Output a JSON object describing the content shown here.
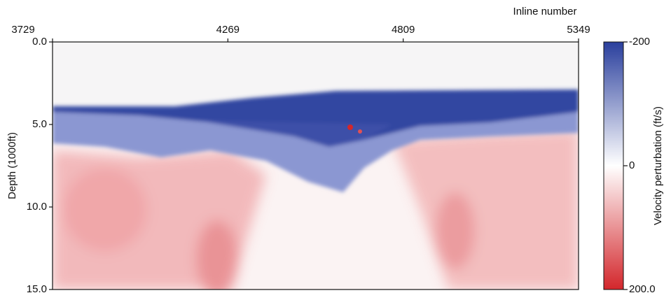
{
  "chart_data": {
    "type": "heatmap",
    "x_label": "Inline number",
    "y_label": "Depth (1000ft)",
    "colorbar_label": "Velocity perturbation (ft/s)",
    "xlim": [
      3729,
      5349
    ],
    "xticks": [
      3729,
      4269,
      4809,
      5349
    ],
    "ylim": [
      0,
      15
    ],
    "y_inverted": true,
    "yticks": [
      {
        "value": 0,
        "label": "0.0"
      },
      {
        "value": 5,
        "label": "5.0"
      },
      {
        "value": 10,
        "label": "10.0"
      },
      {
        "value": 15,
        "label": "15.0"
      }
    ],
    "clim": [
      -200,
      200
    ],
    "cticks": [
      -200,
      0,
      {
        "value": 200,
        "label": "200.0"
      }
    ],
    "colormap": [
      "#2a3f9d",
      "#ffffff",
      "#d3262b"
    ]
  }
}
